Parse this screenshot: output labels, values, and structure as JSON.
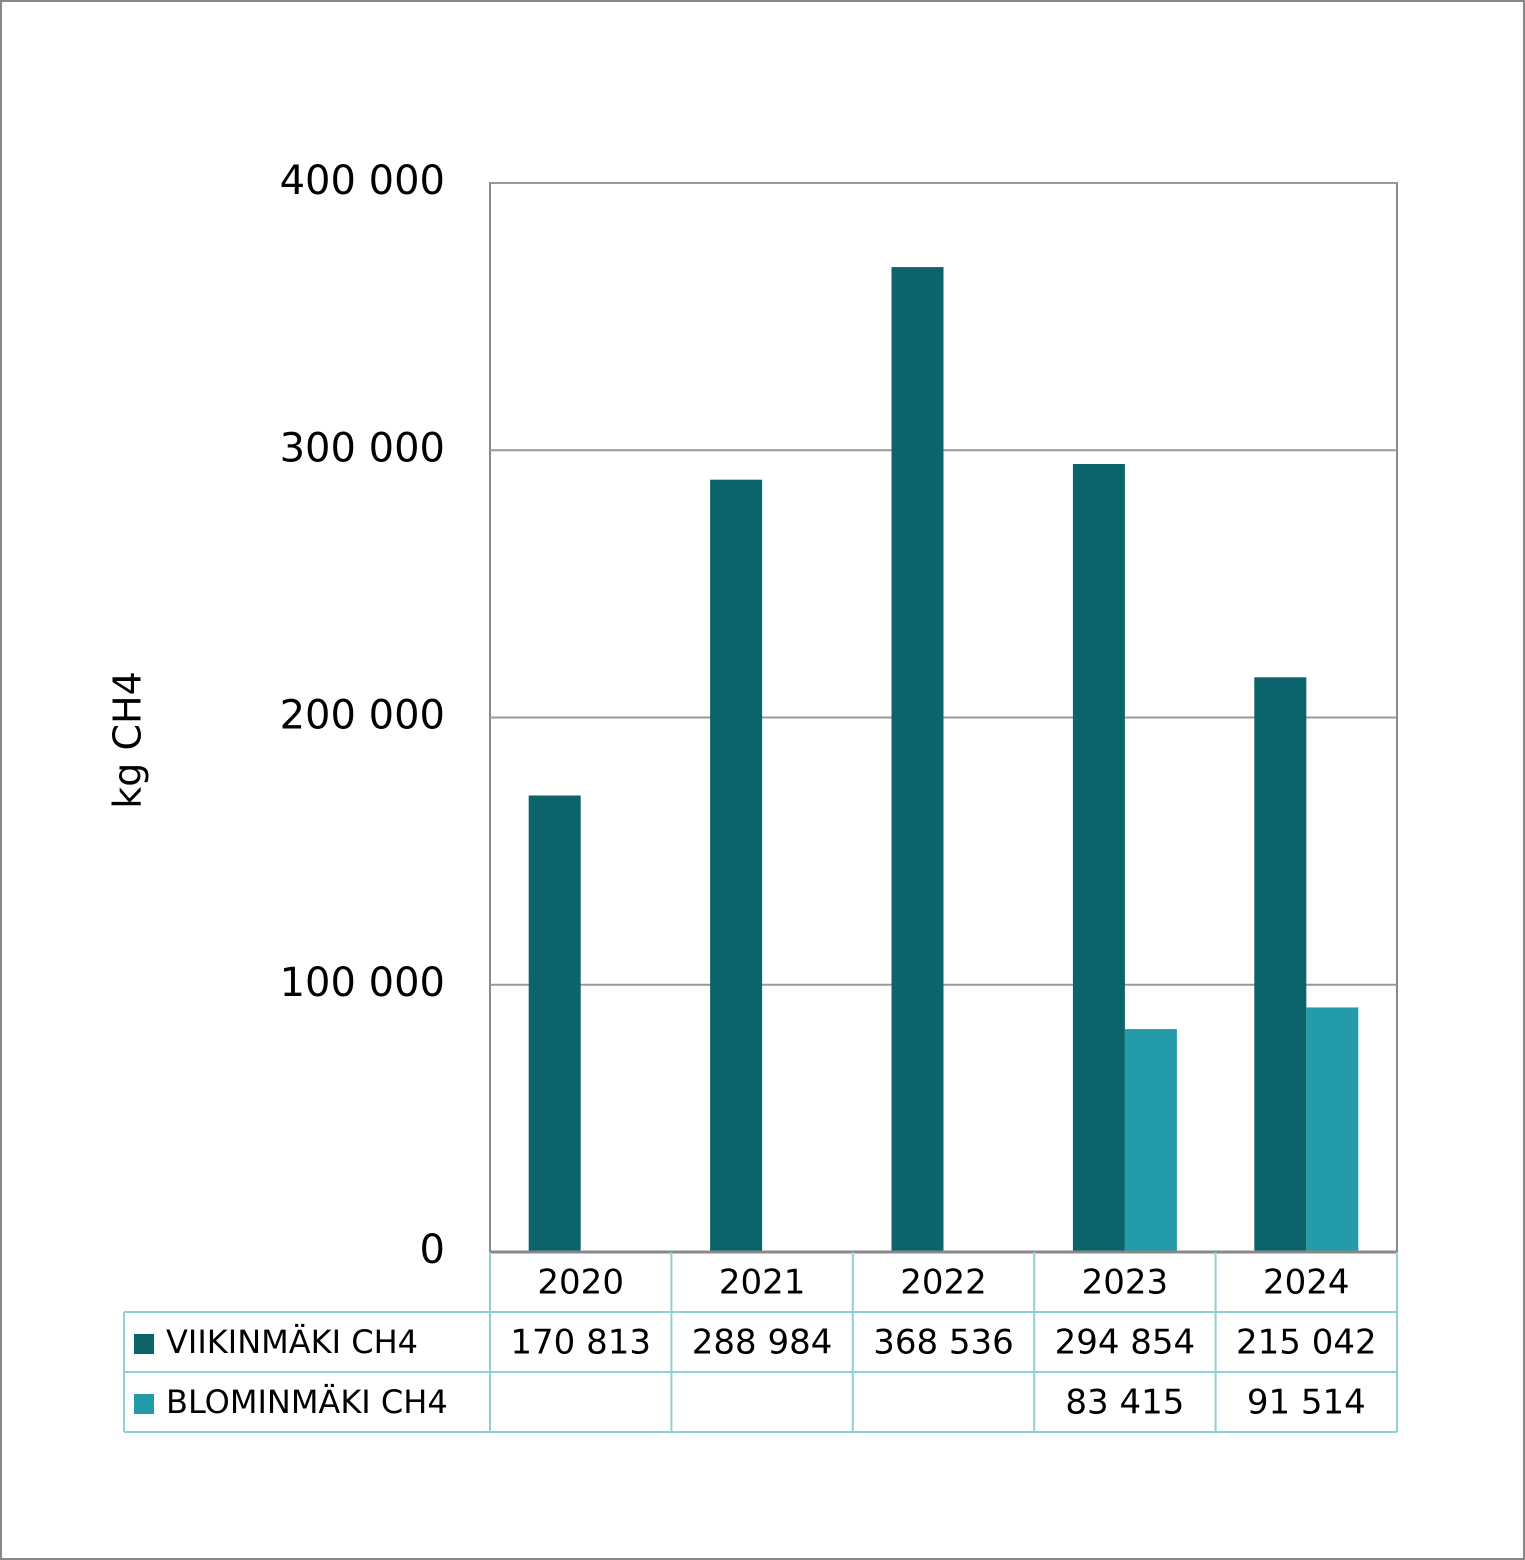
{
  "chart_data": {
    "type": "bar",
    "y_label": "kg CH4",
    "categories": [
      "2020",
      "2021",
      "2022",
      "2023",
      "2024"
    ],
    "series": [
      {
        "name": "VIIKINMÄKI CH4",
        "color": "#0b646c",
        "values": [
          170813,
          288984,
          368536,
          294854,
          215042
        ],
        "value_labels": [
          "170 813",
          "288 984",
          "368 536",
          "294 854",
          "215 042"
        ]
      },
      {
        "name": "BLOMINMÄKI CH4",
        "color": "#239ba9",
        "values": [
          null,
          null,
          null,
          83415,
          91514
        ],
        "value_labels": [
          null,
          null,
          null,
          "83 415",
          "91 514"
        ]
      }
    ],
    "ylim": [
      0,
      400000
    ],
    "yticks": [
      0,
      {
        "value": 100000,
        "label": "100 000"
      },
      {
        "value": 200000,
        "label": "200 000"
      },
      {
        "value": 300000,
        "label": "300 000"
      },
      {
        "value": 400000,
        "label": "400 000"
      }
    ],
    "grid": true
  }
}
